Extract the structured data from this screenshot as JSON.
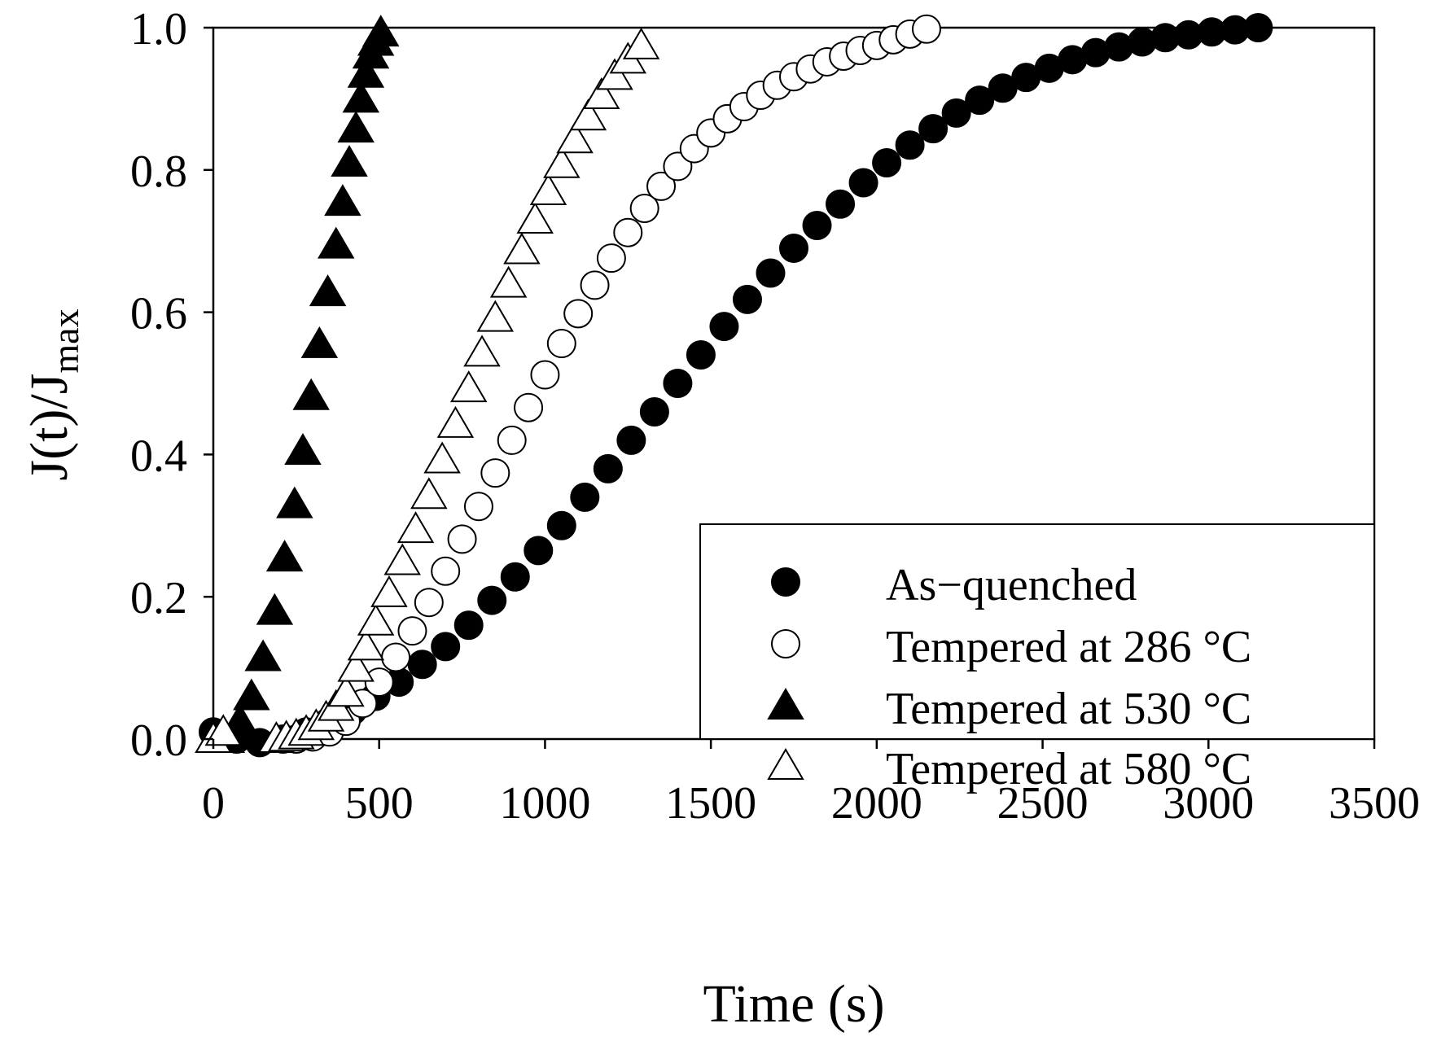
{
  "chart_data": {
    "type": "scatter",
    "title": "",
    "xlabel": "Time (s)",
    "ylabel": {
      "main": "J(t)/J",
      "subscript": "max"
    },
    "xlim": [
      -50,
      3500
    ],
    "ylim": [
      0,
      1.0
    ],
    "xticks": [
      0,
      500,
      1000,
      1500,
      2000,
      2500,
      3000,
      3500
    ],
    "xtick_labels": [
      "0",
      "500",
      "1000",
      "1500",
      "2000",
      "2500",
      "3000",
      "3500"
    ],
    "yticks": [
      0,
      0.2,
      0.4,
      0.6,
      0.8,
      1.0
    ],
    "ytick_labels": [
      "0.0",
      "0.2",
      "0.4",
      "0.6",
      "0.8",
      "1.0"
    ],
    "grid": false,
    "legend_position": "bottom-right",
    "series": [
      {
        "name": "As−quenched",
        "marker": "circle",
        "fill": "#000000",
        "x": [
          0,
          70,
          140,
          210,
          280,
          350,
          420,
          490,
          560,
          630,
          700,
          770,
          840,
          910,
          980,
          1050,
          1120,
          1190,
          1260,
          1330,
          1400,
          1470,
          1540,
          1610,
          1680,
          1750,
          1820,
          1890,
          1960,
          2030,
          2100,
          2170,
          2240,
          2310,
          2380,
          2450,
          2520,
          2590,
          2660,
          2730,
          2800,
          2870,
          2940,
          3010,
          3080,
          3150
        ],
        "y": [
          0.01,
          0.0,
          -0.005,
          0.0,
          0.01,
          0.025,
          0.04,
          0.06,
          0.08,
          0.105,
          0.13,
          0.16,
          0.195,
          0.228,
          0.265,
          0.3,
          0.34,
          0.38,
          0.42,
          0.46,
          0.5,
          0.54,
          0.58,
          0.618,
          0.655,
          0.69,
          0.722,
          0.752,
          0.782,
          0.81,
          0.835,
          0.858,
          0.88,
          0.898,
          0.915,
          0.93,
          0.943,
          0.955,
          0.965,
          0.973,
          0.98,
          0.986,
          0.99,
          0.994,
          0.997,
          1.0
        ]
      },
      {
        "name": "Tempered at 286 °C",
        "marker": "circle",
        "fill": "#ffffff",
        "x": [
          250,
          300,
          350,
          400,
          450,
          500,
          550,
          600,
          650,
          700,
          750,
          800,
          850,
          900,
          950,
          1000,
          1050,
          1100,
          1150,
          1200,
          1250,
          1300,
          1350,
          1400,
          1450,
          1500,
          1550,
          1600,
          1650,
          1700,
          1750,
          1800,
          1850,
          1900,
          1950,
          2000,
          2050,
          2100,
          2150
        ],
        "y": [
          0.0,
          0.003,
          0.01,
          0.025,
          0.05,
          0.08,
          0.115,
          0.152,
          0.192,
          0.236,
          0.281,
          0.327,
          0.374,
          0.42,
          0.466,
          0.512,
          0.556,
          0.598,
          0.638,
          0.676,
          0.712,
          0.746,
          0.777,
          0.805,
          0.83,
          0.852,
          0.872,
          0.889,
          0.905,
          0.919,
          0.931,
          0.942,
          0.952,
          0.96,
          0.968,
          0.975,
          0.983,
          0.991,
          0.998
        ]
      },
      {
        "name": "Tempered at 530 °C",
        "marker": "triangle",
        "fill": "#000000",
        "x": [
          0,
          40,
          80,
          115,
          150,
          185,
          215,
          245,
          270,
          295,
          320,
          345,
          370,
          390,
          410,
          430,
          445,
          460,
          475,
          490,
          505
        ],
        "y": [
          0.0,
          0.0,
          0.025,
          0.06,
          0.115,
          0.18,
          0.255,
          0.33,
          0.405,
          0.482,
          0.555,
          0.628,
          0.695,
          0.755,
          0.81,
          0.858,
          0.9,
          0.935,
          0.962,
          0.98,
          0.993
        ]
      },
      {
        "name": "Tempered at 580 °C",
        "marker": "triangle",
        "fill": "#ffffff",
        "x": [
          0,
          30,
          190,
          220,
          250,
          280,
          310,
          340,
          370,
          400,
          430,
          460,
          490,
          530,
          570,
          610,
          650,
          690,
          730,
          770,
          810,
          850,
          890,
          930,
          970,
          1010,
          1050,
          1090,
          1130,
          1170,
          1210,
          1250,
          1290
        ],
        "y": [
          0.0,
          0.01,
          0.0,
          0.002,
          0.005,
          0.01,
          0.018,
          0.03,
          0.045,
          0.065,
          0.1,
          0.13,
          0.165,
          0.205,
          0.25,
          0.295,
          0.343,
          0.393,
          0.443,
          0.493,
          0.543,
          0.592,
          0.64,
          0.687,
          0.73,
          0.77,
          0.808,
          0.843,
          0.875,
          0.905,
          0.932,
          0.955,
          0.975
        ]
      }
    ]
  }
}
